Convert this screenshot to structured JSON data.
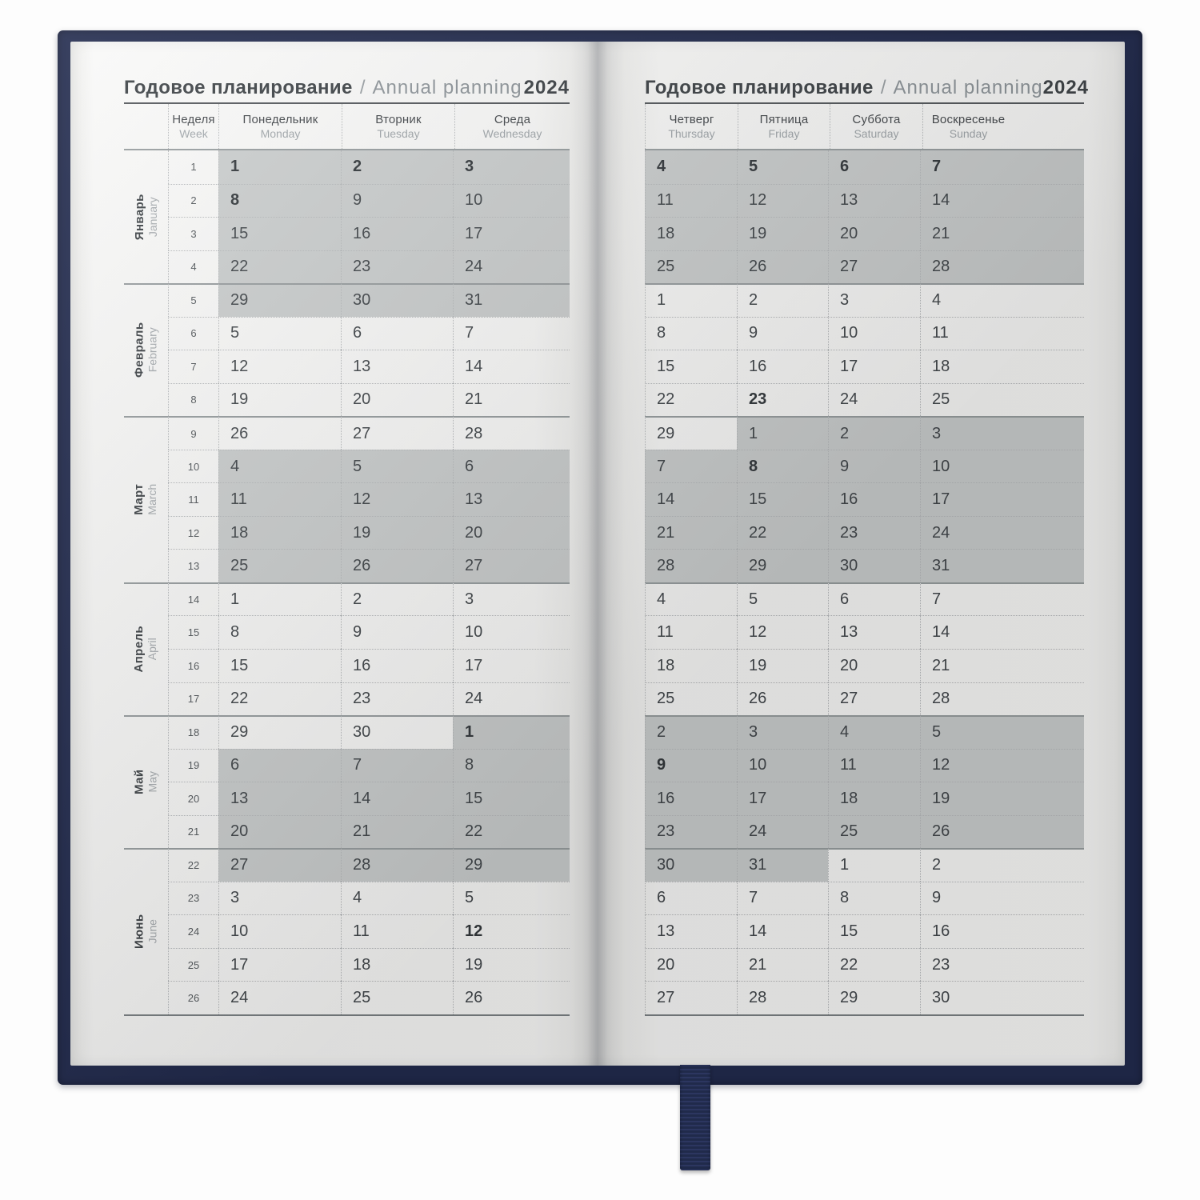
{
  "page_title": {
    "ru": "Годовое планирование",
    "sep": "/",
    "en": "Annual planning",
    "year": "2024"
  },
  "colors": {
    "cover": "#222b4e",
    "shaded_cell": "#cdd0d0",
    "page": "#fbfbfa"
  },
  "left_page": {
    "week_header": {
      "ru": "Неделя",
      "en": "Week"
    },
    "day_headers": [
      {
        "ru": "Понедельник",
        "en": "Monday"
      },
      {
        "ru": "Вторник",
        "en": "Tuesday"
      },
      {
        "ru": "Среда",
        "en": "Wednesday"
      }
    ],
    "months": [
      {
        "ru": "Январь",
        "en": "January",
        "from_week": 1,
        "to_week": 4
      },
      {
        "ru": "Февраль",
        "en": "February",
        "from_week": 5,
        "to_week": 8
      },
      {
        "ru": "Март",
        "en": "March",
        "from_week": 9,
        "to_week": 13
      },
      {
        "ru": "Апрель",
        "en": "April",
        "from_week": 14,
        "to_week": 17
      },
      {
        "ru": "Май",
        "en": "May",
        "from_week": 18,
        "to_week": 21
      },
      {
        "ru": "Июнь",
        "en": "June",
        "from_week": 22,
        "to_week": 26
      }
    ],
    "weeks": [
      {
        "week": "1",
        "days": [
          {
            "d": "1",
            "s": true,
            "h": true
          },
          {
            "d": "2",
            "s": true,
            "h": true
          },
          {
            "d": "3",
            "s": true,
            "h": true
          }
        ]
      },
      {
        "week": "2",
        "days": [
          {
            "d": "8",
            "s": true,
            "h": true
          },
          {
            "d": "9",
            "s": true
          },
          {
            "d": "10",
            "s": true
          }
        ]
      },
      {
        "week": "3",
        "days": [
          {
            "d": "15",
            "s": true
          },
          {
            "d": "16",
            "s": true
          },
          {
            "d": "17",
            "s": true
          }
        ]
      },
      {
        "week": "4",
        "days": [
          {
            "d": "22",
            "s": true
          },
          {
            "d": "23",
            "s": true
          },
          {
            "d": "24",
            "s": true
          }
        ]
      },
      {
        "week": "5",
        "days": [
          {
            "d": "29",
            "s": true
          },
          {
            "d": "30",
            "s": true
          },
          {
            "d": "31",
            "s": true
          }
        ]
      },
      {
        "week": "6",
        "days": [
          {
            "d": "5"
          },
          {
            "d": "6"
          },
          {
            "d": "7"
          }
        ]
      },
      {
        "week": "7",
        "days": [
          {
            "d": "12"
          },
          {
            "d": "13"
          },
          {
            "d": "14"
          }
        ]
      },
      {
        "week": "8",
        "days": [
          {
            "d": "19"
          },
          {
            "d": "20"
          },
          {
            "d": "21"
          }
        ]
      },
      {
        "week": "9",
        "days": [
          {
            "d": "26"
          },
          {
            "d": "27"
          },
          {
            "d": "28"
          }
        ]
      },
      {
        "week": "10",
        "days": [
          {
            "d": "4",
            "s": true
          },
          {
            "d": "5",
            "s": true
          },
          {
            "d": "6",
            "s": true
          }
        ]
      },
      {
        "week": "11",
        "days": [
          {
            "d": "11",
            "s": true
          },
          {
            "d": "12",
            "s": true
          },
          {
            "d": "13",
            "s": true
          }
        ]
      },
      {
        "week": "12",
        "days": [
          {
            "d": "18",
            "s": true
          },
          {
            "d": "19",
            "s": true
          },
          {
            "d": "20",
            "s": true
          }
        ]
      },
      {
        "week": "13",
        "days": [
          {
            "d": "25",
            "s": true
          },
          {
            "d": "26",
            "s": true
          },
          {
            "d": "27",
            "s": true
          }
        ]
      },
      {
        "week": "14",
        "days": [
          {
            "d": "1"
          },
          {
            "d": "2"
          },
          {
            "d": "3"
          }
        ]
      },
      {
        "week": "15",
        "days": [
          {
            "d": "8"
          },
          {
            "d": "9"
          },
          {
            "d": "10"
          }
        ]
      },
      {
        "week": "16",
        "days": [
          {
            "d": "15"
          },
          {
            "d": "16"
          },
          {
            "d": "17"
          }
        ]
      },
      {
        "week": "17",
        "days": [
          {
            "d": "22"
          },
          {
            "d": "23"
          },
          {
            "d": "24"
          }
        ]
      },
      {
        "week": "18",
        "days": [
          {
            "d": "29"
          },
          {
            "d": "30"
          },
          {
            "d": "1",
            "s": true,
            "h": true
          }
        ]
      },
      {
        "week": "19",
        "days": [
          {
            "d": "6",
            "s": true
          },
          {
            "d": "7",
            "s": true
          },
          {
            "d": "8",
            "s": true
          }
        ]
      },
      {
        "week": "20",
        "days": [
          {
            "d": "13",
            "s": true
          },
          {
            "d": "14",
            "s": true
          },
          {
            "d": "15",
            "s": true
          }
        ]
      },
      {
        "week": "21",
        "days": [
          {
            "d": "20",
            "s": true
          },
          {
            "d": "21",
            "s": true
          },
          {
            "d": "22",
            "s": true
          }
        ]
      },
      {
        "week": "22",
        "days": [
          {
            "d": "27",
            "s": true
          },
          {
            "d": "28",
            "s": true
          },
          {
            "d": "29",
            "s": true
          }
        ]
      },
      {
        "week": "23",
        "days": [
          {
            "d": "3"
          },
          {
            "d": "4"
          },
          {
            "d": "5"
          }
        ]
      },
      {
        "week": "24",
        "days": [
          {
            "d": "10"
          },
          {
            "d": "11"
          },
          {
            "d": "12",
            "h": true
          }
        ]
      },
      {
        "week": "25",
        "days": [
          {
            "d": "17"
          },
          {
            "d": "18"
          },
          {
            "d": "19"
          }
        ]
      },
      {
        "week": "26",
        "days": [
          {
            "d": "24"
          },
          {
            "d": "25"
          },
          {
            "d": "26"
          }
        ]
      }
    ]
  },
  "right_page": {
    "day_headers": [
      {
        "ru": "Четверг",
        "en": "Thursday"
      },
      {
        "ru": "Пятница",
        "en": "Friday"
      },
      {
        "ru": "Суббота",
        "en": "Saturday"
      },
      {
        "ru": "Воскресенье",
        "en": "Sunday"
      }
    ],
    "weeks": [
      {
        "days": [
          {
            "d": "4",
            "s": true,
            "h": true
          },
          {
            "d": "5",
            "s": true,
            "h": true
          },
          {
            "d": "6",
            "s": true,
            "h": true
          },
          {
            "d": "7",
            "s": true,
            "h": true
          }
        ]
      },
      {
        "days": [
          {
            "d": "11",
            "s": true
          },
          {
            "d": "12",
            "s": true
          },
          {
            "d": "13",
            "s": true
          },
          {
            "d": "14",
            "s": true
          }
        ]
      },
      {
        "days": [
          {
            "d": "18",
            "s": true
          },
          {
            "d": "19",
            "s": true
          },
          {
            "d": "20",
            "s": true
          },
          {
            "d": "21",
            "s": true
          }
        ]
      },
      {
        "days": [
          {
            "d": "25",
            "s": true
          },
          {
            "d": "26",
            "s": true
          },
          {
            "d": "27",
            "s": true
          },
          {
            "d": "28",
            "s": true
          }
        ]
      },
      {
        "days": [
          {
            "d": "1"
          },
          {
            "d": "2"
          },
          {
            "d": "3"
          },
          {
            "d": "4"
          }
        ]
      },
      {
        "days": [
          {
            "d": "8"
          },
          {
            "d": "9"
          },
          {
            "d": "10"
          },
          {
            "d": "11"
          }
        ]
      },
      {
        "days": [
          {
            "d": "15"
          },
          {
            "d": "16"
          },
          {
            "d": "17"
          },
          {
            "d": "18"
          }
        ]
      },
      {
        "days": [
          {
            "d": "22"
          },
          {
            "d": "23",
            "h": true
          },
          {
            "d": "24"
          },
          {
            "d": "25"
          }
        ]
      },
      {
        "days": [
          {
            "d": "29"
          },
          {
            "d": "1",
            "s": true
          },
          {
            "d": "2",
            "s": true
          },
          {
            "d": "3",
            "s": true
          }
        ]
      },
      {
        "days": [
          {
            "d": "7",
            "s": true
          },
          {
            "d": "8",
            "s": true,
            "h": true
          },
          {
            "d": "9",
            "s": true
          },
          {
            "d": "10",
            "s": true
          }
        ]
      },
      {
        "days": [
          {
            "d": "14",
            "s": true
          },
          {
            "d": "15",
            "s": true
          },
          {
            "d": "16",
            "s": true
          },
          {
            "d": "17",
            "s": true
          }
        ]
      },
      {
        "days": [
          {
            "d": "21",
            "s": true
          },
          {
            "d": "22",
            "s": true
          },
          {
            "d": "23",
            "s": true
          },
          {
            "d": "24",
            "s": true
          }
        ]
      },
      {
        "days": [
          {
            "d": "28",
            "s": true
          },
          {
            "d": "29",
            "s": true
          },
          {
            "d": "30",
            "s": true
          },
          {
            "d": "31",
            "s": true
          }
        ]
      },
      {
        "days": [
          {
            "d": "4"
          },
          {
            "d": "5"
          },
          {
            "d": "6"
          },
          {
            "d": "7"
          }
        ]
      },
      {
        "days": [
          {
            "d": "11"
          },
          {
            "d": "12"
          },
          {
            "d": "13"
          },
          {
            "d": "14"
          }
        ]
      },
      {
        "days": [
          {
            "d": "18"
          },
          {
            "d": "19"
          },
          {
            "d": "20"
          },
          {
            "d": "21"
          }
        ]
      },
      {
        "days": [
          {
            "d": "25"
          },
          {
            "d": "26"
          },
          {
            "d": "27"
          },
          {
            "d": "28"
          }
        ]
      },
      {
        "days": [
          {
            "d": "2",
            "s": true
          },
          {
            "d": "3",
            "s": true
          },
          {
            "d": "4",
            "s": true
          },
          {
            "d": "5",
            "s": true
          }
        ]
      },
      {
        "days": [
          {
            "d": "9",
            "s": true,
            "h": true
          },
          {
            "d": "10",
            "s": true
          },
          {
            "d": "11",
            "s": true
          },
          {
            "d": "12",
            "s": true
          }
        ]
      },
      {
        "days": [
          {
            "d": "16",
            "s": true
          },
          {
            "d": "17",
            "s": true
          },
          {
            "d": "18",
            "s": true
          },
          {
            "d": "19",
            "s": true
          }
        ]
      },
      {
        "days": [
          {
            "d": "23",
            "s": true
          },
          {
            "d": "24",
            "s": true
          },
          {
            "d": "25",
            "s": true
          },
          {
            "d": "26",
            "s": true
          }
        ]
      },
      {
        "days": [
          {
            "d": "30",
            "s": true
          },
          {
            "d": "31",
            "s": true
          },
          {
            "d": "1"
          },
          {
            "d": "2"
          }
        ]
      },
      {
        "days": [
          {
            "d": "6"
          },
          {
            "d": "7"
          },
          {
            "d": "8"
          },
          {
            "d": "9"
          }
        ]
      },
      {
        "days": [
          {
            "d": "13"
          },
          {
            "d": "14"
          },
          {
            "d": "15"
          },
          {
            "d": "16"
          }
        ]
      },
      {
        "days": [
          {
            "d": "20"
          },
          {
            "d": "21"
          },
          {
            "d": "22"
          },
          {
            "d": "23"
          }
        ]
      },
      {
        "days": [
          {
            "d": "27"
          },
          {
            "d": "28"
          },
          {
            "d": "29"
          },
          {
            "d": "30"
          }
        ]
      }
    ]
  }
}
